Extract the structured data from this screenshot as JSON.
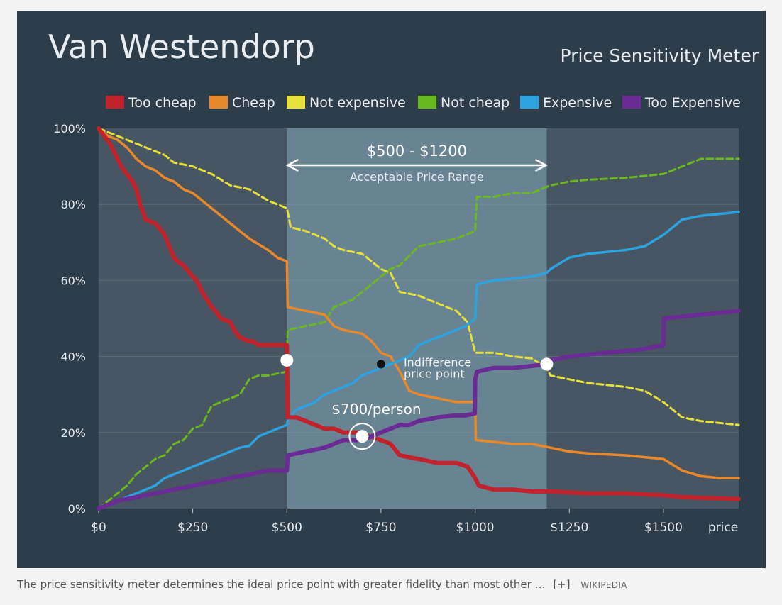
{
  "caption": {
    "text": "The price sensitivity meter determines the ideal price point with greater fidelity than most other …",
    "expand": "[+]",
    "source": "WIKIPEDIA"
  },
  "chart_data": {
    "type": "line",
    "title": "Van Westendorp",
    "subtitle": "Price Sensitivity Meter",
    "xlabel": "price",
    "xlim": [
      0,
      1700
    ],
    "ylim": [
      0,
      100
    ],
    "x_ticks": [
      0,
      250,
      500,
      750,
      1000,
      1250,
      1500
    ],
    "x_tick_labels": [
      "$0",
      "$250",
      "$500",
      "$750",
      "$1000",
      "$1250",
      "$1500"
    ],
    "y_ticks": [
      0,
      20,
      40,
      60,
      80,
      100
    ],
    "y_tick_labels": [
      "0%",
      "20%",
      "40%",
      "60%",
      "80%",
      "100%"
    ],
    "grid": true,
    "legend_position": "top",
    "range_band": {
      "from": 500,
      "to": 1190,
      "label": "$500 - $1200",
      "sublabel": "Acceptable Price Range"
    },
    "annotations": {
      "indifference": {
        "text_line1": "Indifference",
        "text_line2": "price point",
        "x": 750,
        "y": 38
      },
      "optimal": {
        "text": "$700/person",
        "x": 700,
        "y": 19
      },
      "marginal_cheapness": {
        "x": 500,
        "y": 39
      },
      "marginal_expensiveness": {
        "x": 1190,
        "y": 38
      }
    },
    "series": [
      {
        "name": "Too cheap",
        "color": "#c0232c",
        "style": "solid",
        "width": 6,
        "x": [
          0,
          15,
          30,
          40,
          50,
          60,
          75,
          90,
          100,
          110,
          125,
          150,
          160,
          175,
          200,
          210,
          225,
          250,
          260,
          275,
          300,
          310,
          325,
          350,
          360,
          375,
          400,
          410,
          425,
          450,
          460,
          475,
          500,
          502,
          525,
          550,
          600,
          625,
          650,
          700,
          720,
          750,
          775,
          800,
          850,
          900,
          950,
          980,
          1000,
          1005,
          1010,
          1050,
          1100,
          1150,
          1190,
          1200,
          1300,
          1400,
          1500,
          1550,
          1600,
          1700
        ],
        "y": [
          100,
          98,
          96,
          94,
          92,
          90,
          88,
          86,
          84,
          80,
          76,
          75,
          74,
          72,
          66,
          65,
          64,
          61,
          60,
          57,
          53,
          52,
          50,
          49,
          47,
          45,
          44,
          44,
          43,
          43,
          43,
          43,
          43,
          24,
          24,
          23,
          21,
          21,
          20,
          20,
          19,
          18,
          17,
          14,
          13,
          12,
          12,
          11,
          8,
          7,
          6,
          5,
          5,
          4.5,
          4.5,
          4.5,
          4,
          4,
          3.5,
          3,
          2.8,
          2.5
        ]
      },
      {
        "name": "Cheap",
        "color": "#e8882a",
        "style": "solid",
        "width": 3.5,
        "x": [
          0,
          25,
          50,
          75,
          100,
          125,
          150,
          175,
          200,
          225,
          250,
          275,
          300,
          325,
          350,
          375,
          400,
          450,
          475,
          500,
          502,
          550,
          600,
          625,
          650,
          700,
          725,
          750,
          775,
          800,
          825,
          850,
          900,
          950,
          975,
          1000,
          1002,
          1100,
          1150,
          1200,
          1250,
          1300,
          1400,
          1450,
          1500,
          1550,
          1600,
          1650,
          1700
        ],
        "y": [
          100,
          98,
          97,
          95,
          92,
          90,
          89,
          87,
          86,
          84,
          83,
          81,
          79,
          77,
          75,
          73,
          71,
          68,
          66,
          65,
          53,
          52,
          51,
          48,
          47,
          46,
          44,
          41,
          40,
          36,
          31,
          30,
          29,
          28,
          28,
          28,
          18,
          17,
          17,
          16,
          15,
          14.5,
          14,
          13.5,
          13,
          10,
          8.5,
          8,
          8
        ]
      },
      {
        "name": "Not expensive",
        "color": "#e6e03a",
        "style": "dashed",
        "width": 3,
        "x": [
          0,
          25,
          50,
          75,
          100,
          150,
          175,
          200,
          250,
          300,
          350,
          400,
          450,
          475,
          500,
          510,
          550,
          600,
          625,
          650,
          700,
          725,
          750,
          775,
          800,
          850,
          900,
          950,
          980,
          1000,
          1050,
          1100,
          1150,
          1190,
          1200,
          1250,
          1300,
          1350,
          1400,
          1450,
          1500,
          1550,
          1600,
          1650,
          1700
        ],
        "y": [
          100,
          99,
          98,
          97,
          96,
          94,
          93,
          91,
          90,
          88,
          85,
          84,
          81,
          80,
          79,
          74,
          73,
          71,
          69,
          68,
          67,
          65,
          63,
          62,
          57,
          56,
          54,
          52,
          49,
          41,
          41,
          40,
          39.5,
          37,
          35,
          34,
          33,
          32.5,
          32,
          31,
          28,
          24,
          23,
          22.5,
          22
        ]
      },
      {
        "name": "Not cheap",
        "color": "#6ab81f",
        "style": "dashed",
        "width": 3,
        "x": [
          0,
          25,
          50,
          75,
          100,
          125,
          150,
          175,
          200,
          225,
          250,
          275,
          300,
          325,
          350,
          375,
          400,
          425,
          450,
          475,
          500,
          502,
          550,
          600,
          625,
          650,
          675,
          700,
          725,
          750,
          775,
          800,
          850,
          900,
          950,
          975,
          1000,
          1005,
          1050,
          1100,
          1150,
          1200,
          1250,
          1300,
          1400,
          1500,
          1550,
          1600,
          1650,
          1700
        ],
        "y": [
          0,
          2,
          4,
          6,
          9,
          11,
          13,
          14,
          17,
          18,
          21,
          22,
          27,
          28,
          29,
          30,
          34,
          35,
          35,
          35.5,
          36,
          47,
          48,
          49,
          53,
          54,
          55,
          57,
          59,
          61,
          63,
          64,
          69,
          70,
          71,
          72,
          73,
          82,
          82,
          83,
          83,
          85,
          86,
          86.5,
          87,
          88,
          90,
          92,
          92,
          92
        ]
      },
      {
        "name": "Expensive",
        "color": "#2ca2de",
        "style": "solid",
        "width": 3.5,
        "x": [
          0,
          50,
          100,
          150,
          175,
          200,
          225,
          250,
          275,
          300,
          325,
          350,
          375,
          400,
          425,
          450,
          475,
          500,
          502,
          525,
          550,
          575,
          600,
          625,
          650,
          675,
          700,
          725,
          750,
          775,
          800,
          825,
          850,
          875,
          900,
          925,
          950,
          975,
          1000,
          1005,
          1050,
          1100,
          1150,
          1190,
          1200,
          1250,
          1300,
          1350,
          1400,
          1450,
          1500,
          1550,
          1600,
          1650,
          1700
        ],
        "y": [
          0,
          2,
          4,
          6,
          8,
          9,
          10,
          11,
          12,
          13,
          14,
          15,
          16,
          16.5,
          19,
          20,
          21,
          22,
          23,
          26,
          27,
          28,
          30,
          31,
          32,
          33,
          35,
          36,
          37,
          38,
          39,
          40,
          43,
          44,
          45,
          46,
          47,
          48,
          50,
          59,
          60,
          60.5,
          61,
          62,
          63,
          66,
          67,
          67.5,
          68,
          69,
          72,
          76,
          77,
          77.5,
          78
        ]
      },
      {
        "name": "Too Expensive",
        "color": "#6a2b94",
        "style": "solid",
        "width": 6,
        "x": [
          0,
          50,
          100,
          150,
          200,
          250,
          300,
          350,
          400,
          450,
          475,
          500,
          502,
          550,
          600,
          625,
          650,
          700,
          725,
          750,
          775,
          800,
          825,
          850,
          900,
          950,
          975,
          999,
          1000,
          1005,
          1050,
          1100,
          1150,
          1190,
          1200,
          1250,
          1300,
          1350,
          1400,
          1450,
          1500,
          1502,
          1550,
          1600,
          1650,
          1700
        ],
        "y": [
          0,
          2,
          3,
          4,
          5,
          6,
          7,
          8,
          9,
          10,
          10,
          10,
          14,
          15,
          16,
          17,
          18,
          18,
          19,
          20,
          21,
          22,
          22,
          23,
          24,
          24.5,
          24.5,
          25,
          34,
          36,
          37,
          37,
          37.5,
          38,
          39,
          40,
          40.5,
          41,
          41.5,
          42,
          43,
          50,
          50.5,
          51,
          51.5,
          52
        ]
      }
    ]
  }
}
